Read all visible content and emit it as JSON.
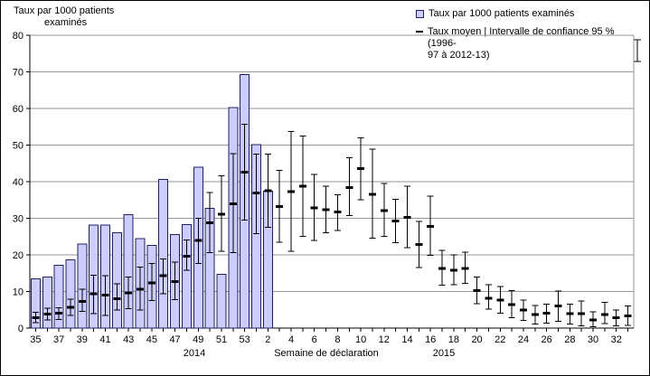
{
  "title": {
    "line1": "Taux par 1000 patients",
    "line2": "examinés"
  },
  "legend": {
    "items": [
      {
        "label": "Taux par 1000 patients examinés",
        "symbol": "bar-swatch"
      },
      {
        "line1": "Taux moyen | Intervalle de confiance 95 % (1996-",
        "line2": "97 à 2012-13)",
        "label": "Taux moyen | Intervalle de confiance 95 % (1996-97 à 2012-13)",
        "symbol": "mean-dash-and-errorbar"
      }
    ]
  },
  "x_axis": {
    "label": "Semaine de déclaration",
    "year_left": "2014",
    "year_right": "2015",
    "shown_tick_labels": [
      "35",
      "37",
      "39",
      "41",
      "43",
      "45",
      "47",
      "49",
      "51",
      "53",
      "2",
      "4",
      "6",
      "8",
      "10",
      "12",
      "14",
      "16",
      "18",
      "20",
      "22",
      "24",
      "26",
      "28",
      "30",
      "32"
    ]
  },
  "y_axis": {
    "title": "Taux par 1000 patients examinés"
  },
  "colors": {
    "bar_fill": "#ccccff",
    "bar_border": "#202060",
    "gridline": "#969696",
    "axis": "#000000",
    "errorbar": "#000000",
    "text": "#000000",
    "background": "#ffffff"
  },
  "chart_data": {
    "type": "bar",
    "title": "Taux par 1000 patients examinés",
    "xlabel": "Semaine de déclaration",
    "ylabel": "Taux par 1000 patients examinés",
    "ylim": [
      0,
      80
    ],
    "y_ticks": [
      0,
      10,
      20,
      30,
      40,
      50,
      60,
      70,
      80
    ],
    "grid": true,
    "legend_position": "top-right",
    "categories": [
      "35",
      "36",
      "37",
      "38",
      "39",
      "40",
      "41",
      "42",
      "43",
      "44",
      "45",
      "46",
      "47",
      "48",
      "49",
      "50",
      "51",
      "52",
      "53",
      "1",
      "2",
      "3",
      "4",
      "5",
      "6",
      "7",
      "8",
      "9",
      "10",
      "11",
      "12",
      "13",
      "14",
      "15",
      "16",
      "17",
      "18",
      "19",
      "20",
      "21",
      "22",
      "23",
      "24",
      "25",
      "26",
      "27",
      "28",
      "29",
      "30",
      "31",
      "32",
      "33"
    ],
    "category_year_note": "weeks 35-53 are 2014, weeks 1-33 are 2015",
    "series": [
      {
        "name": "Taux par 1000 patients examinés",
        "type": "bar",
        "values": [
          13.4,
          14.0,
          17.2,
          18.6,
          23.0,
          28.2,
          28.1,
          26.1,
          31.0,
          24.5,
          22.6,
          40.6,
          25.5,
          28.3,
          44.0,
          32.7,
          14.7,
          60.2,
          69.2,
          50.1,
          37.4,
          null,
          null,
          null,
          null,
          null,
          null,
          null,
          null,
          null,
          null,
          null,
          null,
          null,
          null,
          null,
          null,
          null,
          null,
          null,
          null,
          null,
          null,
          null,
          null,
          null,
          null,
          null,
          null,
          null,
          null,
          null
        ]
      },
      {
        "name": "Taux moyen | Intervalle de confiance 95 % (1996-97 à 2012-13)",
        "type": "errorbar",
        "mean": [
          2.9,
          3.8,
          4.1,
          5.7,
          7.3,
          9.4,
          9.0,
          8.0,
          9.6,
          10.6,
          12.4,
          14.3,
          12.7,
          19.6,
          24.0,
          28.8,
          31.1,
          34.0,
          42.6,
          36.9,
          37.5,
          33.2,
          37.3,
          38.8,
          32.9,
          32.3,
          31.7,
          38.4,
          43.6,
          36.5,
          32.1,
          29.2,
          30.3,
          22.9,
          27.8,
          16.3,
          15.8,
          16.3,
          10.3,
          8.1,
          7.6,
          6.4,
          4.9,
          3.7,
          4.1,
          6.0,
          3.9,
          4.0,
          2.2,
          3.7,
          2.9,
          3.3
        ],
        "ci_low": [
          1.5,
          2.2,
          2.4,
          3.5,
          4.6,
          4.0,
          3.5,
          4.9,
          5.3,
          4.9,
          7.5,
          9.4,
          7.8,
          15.8,
          17.7,
          20.6,
          21.0,
          20.6,
          29.5,
          25.8,
          27.5,
          23.5,
          21.0,
          25.1,
          23.9,
          26.1,
          26.7,
          30.7,
          35.1,
          24.6,
          25.1,
          23.3,
          22.0,
          16.6,
          19.9,
          11.7,
          11.9,
          12.2,
          6.7,
          5.2,
          4.1,
          2.9,
          2.1,
          1.1,
          1.4,
          1.9,
          1.1,
          0.6,
          0.4,
          1.2,
          0.6,
          0.8
        ],
        "ci_high": [
          4.3,
          5.4,
          5.6,
          7.9,
          10.6,
          14.4,
          14.3,
          12.1,
          13.9,
          16.7,
          17.6,
          18.9,
          18.0,
          24.1,
          30.0,
          37.0,
          41.6,
          47.7,
          55.7,
          47.5,
          47.5,
          43.1,
          53.7,
          52.5,
          42.0,
          38.8,
          36.4,
          46.5,
          52.0,
          48.9,
          39.5,
          35.2,
          38.8,
          29.1,
          36.0,
          21.2,
          20.0,
          20.8,
          14.0,
          11.9,
          11.3,
          10.3,
          7.6,
          6.2,
          6.6,
          10.1,
          6.6,
          7.4,
          4.4,
          7.0,
          4.9,
          6.0
        ]
      }
    ]
  }
}
